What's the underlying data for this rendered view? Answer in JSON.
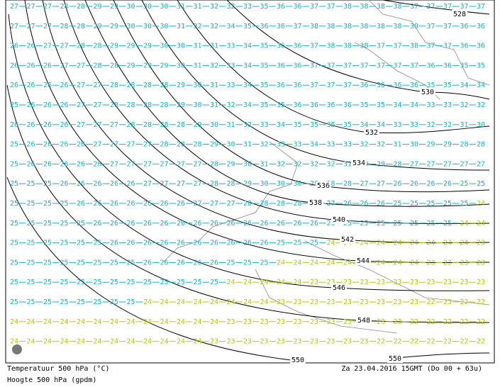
{
  "map": {
    "contour_labels": [
      "528",
      "530",
      "532",
      "534",
      "536",
      "538",
      "540",
      "542",
      "544",
      "546",
      "548",
      "550",
      "550"
    ],
    "temperature_grid": [
      [
        27,
        27,
        27,
        28,
        28,
        29,
        29,
        30,
        30,
        30,
        31,
        31,
        32,
        32,
        33,
        35,
        36,
        36,
        37,
        37,
        38,
        38,
        38,
        38,
        37,
        37,
        37,
        37,
        37
      ],
      [
        27,
        27,
        27,
        28,
        28,
        29,
        29,
        30,
        30,
        30,
        31,
        32,
        32,
        34,
        35,
        36,
        36,
        37,
        38,
        38,
        38,
        38,
        38,
        38,
        39,
        37,
        37,
        36,
        36
      ],
      [
        26,
        26,
        27,
        27,
        28,
        28,
        29,
        29,
        29,
        30,
        30,
        31,
        31,
        33,
        34,
        35,
        36,
        36,
        37,
        38,
        38,
        38,
        37,
        37,
        38,
        37,
        37,
        36,
        36
      ],
      [
        26,
        26,
        26,
        27,
        27,
        28,
        28,
        29,
        29,
        29,
        30,
        31,
        32,
        33,
        34,
        35,
        36,
        36,
        37,
        37,
        37,
        37,
        37,
        37,
        37,
        36,
        36,
        35,
        35
      ],
      [
        26,
        26,
        26,
        26,
        27,
        27,
        28,
        28,
        28,
        28,
        29,
        30,
        31,
        33,
        34,
        35,
        36,
        36,
        37,
        37,
        37,
        36,
        36,
        36,
        36,
        35,
        35,
        34,
        34
      ],
      [
        25,
        26,
        26,
        26,
        27,
        27,
        28,
        28,
        28,
        28,
        29,
        30,
        31,
        32,
        34,
        35,
        35,
        36,
        36,
        36,
        36,
        35,
        35,
        34,
        34,
        33,
        33,
        32,
        32
      ],
      [
        26,
        26,
        26,
        26,
        27,
        27,
        27,
        28,
        28,
        28,
        28,
        29,
        30,
        31,
        32,
        33,
        34,
        35,
        35,
        35,
        35,
        34,
        34,
        33,
        33,
        32,
        32,
        31,
        30
      ],
      [
        25,
        26,
        26,
        26,
        26,
        27,
        27,
        27,
        27,
        28,
        28,
        28,
        29,
        30,
        31,
        32,
        33,
        33,
        34,
        33,
        33,
        32,
        32,
        31,
        30,
        29,
        29,
        28,
        28
      ],
      [
        25,
        26,
        26,
        26,
        26,
        26,
        27,
        27,
        27,
        27,
        27,
        27,
        28,
        29,
        30,
        31,
        32,
        32,
        32,
        32,
        31,
        30,
        29,
        28,
        27,
        27,
        27,
        27,
        27
      ],
      [
        25,
        25,
        25,
        26,
        26,
        26,
        26,
        26,
        27,
        27,
        27,
        27,
        28,
        28,
        29,
        30,
        30,
        30,
        29,
        28,
        28,
        27,
        27,
        26,
        26,
        26,
        26,
        25,
        25
      ],
      [
        25,
        25,
        25,
        25,
        26,
        26,
        26,
        26,
        26,
        26,
        26,
        27,
        27,
        27,
        28,
        28,
        28,
        28,
        27,
        27,
        26,
        26,
        26,
        25,
        25,
        25,
        25,
        25,
        24
      ],
      [
        25,
        25,
        25,
        25,
        25,
        26,
        26,
        26,
        26,
        26,
        26,
        26,
        26,
        26,
        26,
        26,
        26,
        26,
        26,
        26,
        25,
        25,
        25,
        25,
        25,
        25,
        25,
        24,
        24
      ],
      [
        25,
        25,
        25,
        25,
        25,
        25,
        26,
        26,
        26,
        26,
        26,
        26,
        26,
        26,
        26,
        26,
        25,
        25,
        25,
        24,
        24,
        24,
        24,
        24,
        24,
        24,
        24,
        24,
        23
      ],
      [
        25,
        25,
        25,
        25,
        25,
        25,
        25,
        25,
        26,
        26,
        26,
        26,
        26,
        25,
        25,
        25,
        24,
        24,
        24,
        24,
        24,
        24,
        24,
        24,
        24,
        23,
        23,
        23,
        23
      ],
      [
        25,
        25,
        25,
        25,
        25,
        25,
        25,
        25,
        25,
        25,
        25,
        25,
        25,
        24,
        24,
        24,
        24,
        24,
        23,
        23,
        23,
        23,
        23,
        23,
        23,
        23,
        23,
        23,
        23
      ],
      [
        25,
        25,
        25,
        25,
        25,
        25,
        25,
        25,
        24,
        24,
        24,
        24,
        24,
        24,
        24,
        24,
        23,
        23,
        23,
        23,
        23,
        23,
        23,
        23,
        23,
        22,
        23,
        22,
        22
      ],
      [
        24,
        24,
        24,
        24,
        24,
        24,
        24,
        24,
        24,
        24,
        24,
        24,
        24,
        23,
        23,
        23,
        23,
        23,
        23,
        23,
        23,
        23,
        23,
        23,
        22,
        22,
        22,
        22,
        22
      ],
      [
        24,
        24,
        24,
        24,
        24,
        24,
        24,
        24,
        24,
        24,
        24,
        24,
        23,
        23,
        23,
        23,
        23,
        23,
        23,
        23,
        23,
        23,
        22,
        22,
        22,
        22,
        22,
        22,
        22
      ]
    ],
    "label_colors": {
      "22": "#b4c41e",
      "23": "#b4c41e",
      "24": "#b4c41e"
    },
    "default_label_color": "#1eacc0"
  },
  "footer": {
    "temperature_caption": "Temperatuur 500 hPa (°C)",
    "height_caption": "Hoogte 500 hPa (gpdm)",
    "valid_time": "Za 23.04.2016 15GMT (Do 00 + 63u)"
  }
}
